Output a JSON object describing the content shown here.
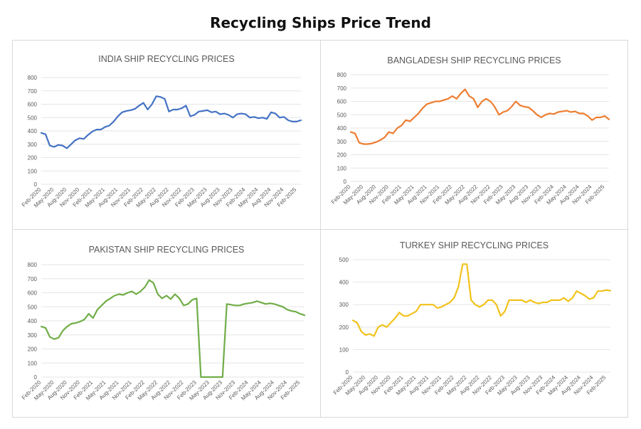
{
  "page": {
    "title": "Recycling Ships Price Trend"
  },
  "chart_data": [
    {
      "id": "india",
      "type": "line",
      "title": "INDIA SHIP RECYCLING PRICES",
      "xlabel": "",
      "ylabel": "",
      "color": "#4472c4",
      "ylim": [
        0,
        800
      ],
      "yticks": [
        0,
        100,
        200,
        300,
        400,
        500,
        600,
        700,
        800
      ],
      "grid": true,
      "x_tick_labels": [
        "Feb-2020",
        "May-2020",
        "Aug-2020",
        "Nov-2020",
        "Feb-2021",
        "May-2021",
        "Aug-2021",
        "Nov-2021",
        "Feb-2022",
        "May-2022",
        "Aug-2022",
        "Nov-2022",
        "Feb-2023",
        "May-2023",
        "Aug-2023",
        "Nov-2023",
        "Feb-2024",
        "May-2024",
        "Aug-2024",
        "Nov-2024",
        "Feb-2025"
      ],
      "x": [
        "2020-02",
        "2020-03",
        "2020-04",
        "2020-05",
        "2020-06",
        "2020-07",
        "2020-08",
        "2020-09",
        "2020-10",
        "2020-11",
        "2020-12",
        "2021-01",
        "2021-02",
        "2021-03",
        "2021-04",
        "2021-05",
        "2021-06",
        "2021-07",
        "2021-08",
        "2021-09",
        "2021-10",
        "2021-11",
        "2021-12",
        "2022-01",
        "2022-02",
        "2022-03",
        "2022-04",
        "2022-05",
        "2022-06",
        "2022-07",
        "2022-08",
        "2022-09",
        "2022-10",
        "2022-11",
        "2022-12",
        "2023-01",
        "2023-02",
        "2023-03",
        "2023-04",
        "2023-05",
        "2023-06",
        "2023-07",
        "2023-08",
        "2023-09",
        "2023-10",
        "2023-11",
        "2023-12",
        "2024-01",
        "2024-02",
        "2024-03",
        "2024-04",
        "2024-05",
        "2024-06",
        "2024-07",
        "2024-08",
        "2024-09",
        "2024-10",
        "2024-11",
        "2024-12",
        "2025-01",
        "2025-02",
        "2025-03"
      ],
      "values": [
        385,
        375,
        290,
        280,
        295,
        290,
        270,
        300,
        330,
        345,
        340,
        370,
        395,
        410,
        410,
        430,
        440,
        470,
        510,
        540,
        550,
        555,
        565,
        590,
        610,
        560,
        600,
        660,
        655,
        640,
        545,
        560,
        560,
        570,
        590,
        510,
        520,
        545,
        550,
        555,
        540,
        545,
        525,
        530,
        520,
        500,
        525,
        530,
        525,
        500,
        505,
        495,
        500,
        490,
        540,
        530,
        500,
        505,
        480,
        470,
        470,
        480
      ]
    },
    {
      "id": "bangladesh",
      "type": "line",
      "title": "BANGLADESH SHIP RECYCLING PRICES",
      "xlabel": "",
      "ylabel": "",
      "color": "#ed7d31",
      "ylim": [
        0,
        800
      ],
      "yticks": [
        0,
        100,
        200,
        300,
        400,
        500,
        600,
        700,
        800
      ],
      "grid": true,
      "x_tick_labels": [
        "Feb-2020",
        "May-2020",
        "Aug-2020",
        "Nov-2020",
        "Feb-2021",
        "May-2021",
        "Aug-2021",
        "Nov-2021",
        "Feb-2022",
        "May-2022",
        "Aug-2022",
        "Nov-2022",
        "Feb-2023",
        "May-2023",
        "Aug-2023",
        "Nov-2023",
        "Feb-2024",
        "May-2024",
        "Aug-2024",
        "Nov-2024",
        "Feb-2025"
      ],
      "x": [
        "2020-02",
        "2020-03",
        "2020-04",
        "2020-05",
        "2020-06",
        "2020-07",
        "2020-08",
        "2020-09",
        "2020-10",
        "2020-11",
        "2020-12",
        "2021-01",
        "2021-02",
        "2021-03",
        "2021-04",
        "2021-05",
        "2021-06",
        "2021-07",
        "2021-08",
        "2021-09",
        "2021-10",
        "2021-11",
        "2021-12",
        "2022-01",
        "2022-02",
        "2022-03",
        "2022-04",
        "2022-05",
        "2022-06",
        "2022-07",
        "2022-08",
        "2022-09",
        "2022-10",
        "2022-11",
        "2022-12",
        "2023-01",
        "2023-02",
        "2023-03",
        "2023-04",
        "2023-05",
        "2023-06",
        "2023-07",
        "2023-08",
        "2023-09",
        "2023-10",
        "2023-11",
        "2023-12",
        "2024-01",
        "2024-02",
        "2024-03",
        "2024-04",
        "2024-05",
        "2024-06",
        "2024-07",
        "2024-08",
        "2024-09",
        "2024-10",
        "2024-11",
        "2024-12",
        "2025-01",
        "2025-02",
        "2025-03"
      ],
      "values": [
        370,
        360,
        290,
        280,
        280,
        285,
        295,
        310,
        330,
        370,
        360,
        400,
        420,
        460,
        450,
        480,
        510,
        550,
        580,
        590,
        600,
        600,
        610,
        620,
        640,
        620,
        660,
        690,
        640,
        620,
        555,
        600,
        620,
        600,
        560,
        500,
        520,
        530,
        560,
        600,
        570,
        560,
        555,
        530,
        500,
        480,
        500,
        510,
        505,
        520,
        525,
        530,
        520,
        525,
        510,
        510,
        490,
        460,
        480,
        480,
        490,
        465
      ]
    },
    {
      "id": "pakistan",
      "type": "line",
      "title": "PAKISTAN SHIP RECYCLING PRICES",
      "xlabel": "",
      "ylabel": "",
      "color": "#70ad47",
      "ylim": [
        0,
        800
      ],
      "yticks": [
        0,
        100,
        200,
        300,
        400,
        500,
        600,
        700,
        800
      ],
      "grid": true,
      "x_tick_labels": [
        "Feb-2020",
        "May-2020",
        "Aug-2020",
        "Nov-2020",
        "Feb-2021",
        "May-2021",
        "Aug-2021",
        "Nov-2021",
        "Feb-2022",
        "May-2022",
        "Aug-2022",
        "Nov-2022",
        "Feb-2023",
        "May-2023",
        "Aug-2023",
        "Nov-2023",
        "Feb-2024",
        "May-2024",
        "Aug-2024",
        "Nov-2024",
        "Feb-2025"
      ],
      "x": [
        "2020-02",
        "2020-03",
        "2020-04",
        "2020-05",
        "2020-06",
        "2020-07",
        "2020-08",
        "2020-09",
        "2020-10",
        "2020-11",
        "2020-12",
        "2021-01",
        "2021-02",
        "2021-03",
        "2021-04",
        "2021-05",
        "2021-06",
        "2021-07",
        "2021-08",
        "2021-09",
        "2021-10",
        "2021-11",
        "2021-12",
        "2022-01",
        "2022-02",
        "2022-03",
        "2022-04",
        "2022-05",
        "2022-06",
        "2022-07",
        "2022-08",
        "2022-09",
        "2022-10",
        "2022-11",
        "2022-12",
        "2023-01",
        "2023-02",
        "2023-03",
        "2023-04",
        "2023-05",
        "2023-06",
        "2023-07",
        "2023-08",
        "2023-09",
        "2023-10",
        "2023-11",
        "2023-12",
        "2024-01",
        "2024-02",
        "2024-03",
        "2024-04",
        "2024-05",
        "2024-06",
        "2024-07",
        "2024-08",
        "2024-09",
        "2024-10",
        "2024-11",
        "2024-12",
        "2025-01",
        "2025-02",
        "2025-03"
      ],
      "values": [
        360,
        350,
        285,
        270,
        280,
        330,
        360,
        380,
        385,
        395,
        410,
        450,
        420,
        480,
        510,
        540,
        560,
        580,
        590,
        585,
        600,
        610,
        590,
        610,
        640,
        690,
        670,
        590,
        560,
        580,
        555,
        590,
        560,
        510,
        520,
        550,
        560,
        0,
        0,
        0,
        0,
        0,
        0,
        520,
        515,
        510,
        510,
        520,
        525,
        530,
        540,
        530,
        520,
        525,
        520,
        510,
        500,
        480,
        470,
        465,
        450,
        440
      ]
    },
    {
      "id": "turkey",
      "type": "line",
      "title": "TURKEY SHIP RECYCLING PRICES",
      "xlabel": "",
      "ylabel": "",
      "color": "#f2c21b",
      "ylim": [
        0,
        500
      ],
      "yticks": [
        0,
        100,
        200,
        300,
        400,
        500
      ],
      "grid": true,
      "x_tick_labels": [
        "Feb-2020",
        "May-2020",
        "Aug-2020",
        "Nov-2020",
        "Feb-2021",
        "May-2021",
        "Aug-2021",
        "Nov-2021",
        "Feb-2022",
        "May-2022",
        "Aug-2022",
        "Nov-2022",
        "Feb-2023",
        "May-2023",
        "Aug-2023",
        "Nov-2023",
        "Feb-2024",
        "May-2024",
        "Aug-2024",
        "Nov-2024",
        "Feb-2025"
      ],
      "x": [
        "2020-02",
        "2020-03",
        "2020-04",
        "2020-05",
        "2020-06",
        "2020-07",
        "2020-08",
        "2020-09",
        "2020-10",
        "2020-11",
        "2020-12",
        "2021-01",
        "2021-02",
        "2021-03",
        "2021-04",
        "2021-05",
        "2021-06",
        "2021-07",
        "2021-08",
        "2021-09",
        "2021-10",
        "2021-11",
        "2021-12",
        "2022-01",
        "2022-02",
        "2022-03",
        "2022-04",
        "2022-05",
        "2022-06",
        "2022-07",
        "2022-08",
        "2022-09",
        "2022-10",
        "2022-11",
        "2022-12",
        "2023-01",
        "2023-02",
        "2023-03",
        "2023-04",
        "2023-05",
        "2023-06",
        "2023-07",
        "2023-08",
        "2023-09",
        "2023-10",
        "2023-11",
        "2023-12",
        "2024-01",
        "2024-02",
        "2024-03",
        "2024-04",
        "2024-05",
        "2024-06",
        "2024-07",
        "2024-08",
        "2024-09",
        "2024-10",
        "2024-11",
        "2024-12",
        "2025-01",
        "2025-02",
        "2025-03"
      ],
      "values": [
        230,
        220,
        180,
        165,
        170,
        160,
        200,
        210,
        200,
        220,
        240,
        265,
        250,
        250,
        260,
        270,
        300,
        300,
        300,
        300,
        285,
        290,
        300,
        310,
        330,
        380,
        480,
        480,
        320,
        300,
        290,
        300,
        320,
        320,
        300,
        250,
        270,
        320,
        320,
        320,
        320,
        310,
        320,
        310,
        305,
        310,
        310,
        320,
        320,
        320,
        330,
        315,
        330,
        360,
        350,
        340,
        325,
        330,
        360,
        360,
        365,
        362
      ]
    }
  ]
}
